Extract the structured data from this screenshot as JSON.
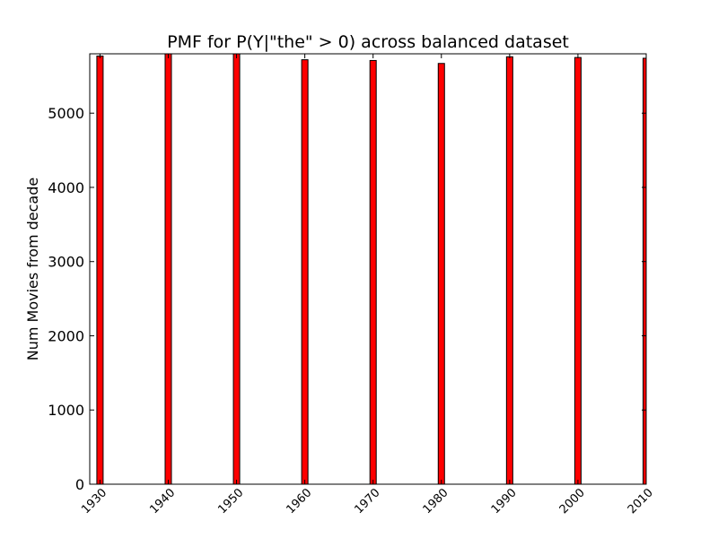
{
  "chart_data": {
    "type": "bar",
    "title": "PMF for P(Y|\"the\" > 0) across balanced dataset",
    "xlabel": "",
    "ylabel": "Num Movies from decade",
    "x": [
      1930,
      1940,
      1950,
      1960,
      1970,
      1980,
      1990,
      2000,
      2010
    ],
    "values": [
      5770,
      5800,
      5800,
      5720,
      5710,
      5670,
      5760,
      5750,
      5740
    ],
    "xlim": [
      1928.5,
      2010
    ],
    "ylim": [
      0,
      5800
    ],
    "xticks": [
      "1930",
      "1940",
      "1950",
      "1960",
      "1970",
      "1980",
      "1990",
      "2000",
      "2010"
    ],
    "yticks": [
      "0",
      "1000",
      "2000",
      "3000",
      "4000",
      "5000"
    ],
    "bar_color": "#ff0000",
    "edge_color": "#000000",
    "grid": false,
    "legend": "none"
  }
}
